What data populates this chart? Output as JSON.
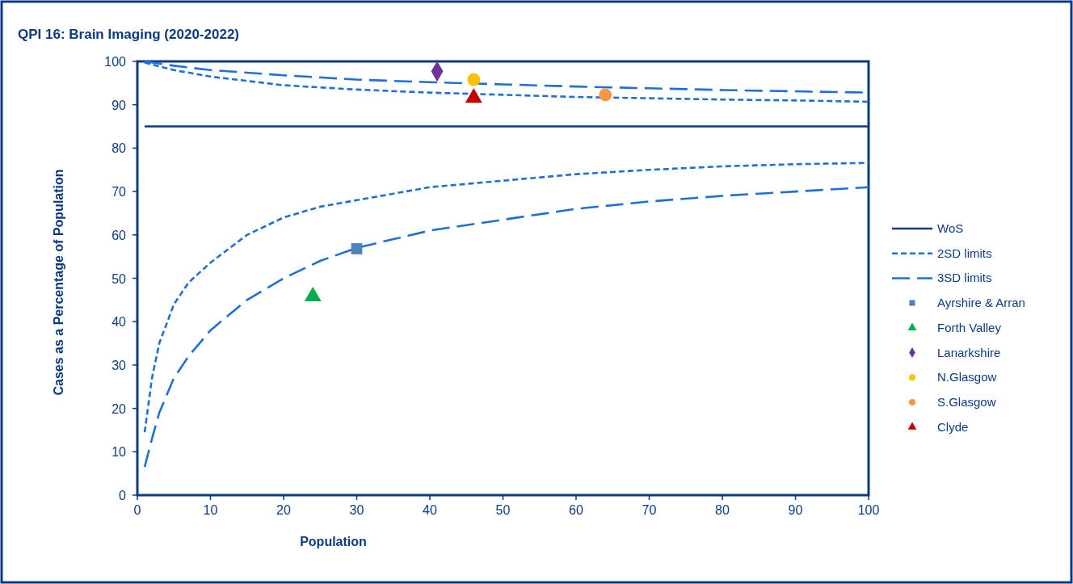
{
  "chart_data": {
    "type": "line",
    "title": "QPI 16: Brain Imaging (2020-2022)",
    "xlabel": "Population",
    "ylabel": "Cases as a Percentage of Population",
    "xlim": [
      0,
      100
    ],
    "xticks": [
      0,
      10,
      20,
      30,
      40,
      50,
      60,
      70,
      80,
      90,
      100
    ],
    "ylim": [
      0,
      100
    ],
    "yticks": [
      0,
      10,
      20,
      30,
      40,
      50,
      60,
      70,
      80,
      90,
      100
    ],
    "grid": false,
    "legend": "right",
    "series": [
      {
        "name": "WoS",
        "color": "#0b3a84",
        "line_style": "solid",
        "marker": "none",
        "x": [
          1,
          100
        ],
        "values": [
          85,
          85
        ]
      },
      {
        "name": "2SD limits",
        "color": "#1f6fd8",
        "line_style": "dotted",
        "marker": "none",
        "x": [
          1,
          2,
          3,
          5,
          7,
          10,
          15,
          20,
          25,
          30,
          40,
          50,
          60,
          70,
          80,
          90,
          100
        ],
        "values": [
          14.5,
          27,
          35,
          44,
          49,
          53.6,
          60,
          64,
          66.5,
          68,
          71,
          72.5,
          74,
          75,
          75.8,
          76.3,
          76.6
        ]
      },
      {
        "color": "#1f6fd8",
        "line_style": "dotted",
        "marker": "none",
        "x": [
          1,
          5,
          10,
          20,
          30,
          40,
          50,
          60,
          70,
          80,
          90,
          100
        ],
        "values": [
          99.7,
          98,
          96.5,
          94.5,
          93.5,
          92.8,
          92.3,
          91.8,
          91.5,
          91.2,
          91,
          90.7
        ]
      },
      {
        "name": "3SD limits",
        "color": "#1f6fd8",
        "line_style": "dashed",
        "marker": "none",
        "x": [
          1,
          2,
          3,
          5,
          7,
          10,
          15,
          20,
          25,
          30,
          40,
          50,
          60,
          70,
          80,
          90,
          100
        ],
        "values": [
          6.5,
          13,
          19,
          27,
          32,
          38,
          45,
          50,
          54,
          57,
          61,
          63.5,
          66,
          67.7,
          69,
          70,
          71
        ]
      },
      {
        "color": "#1f6fd8",
        "line_style": "dashed",
        "marker": "none",
        "x": [
          1,
          5,
          10,
          20,
          30,
          40,
          50,
          60,
          70,
          80,
          90,
          100
        ],
        "values": [
          100,
          99,
          98,
          96.8,
          95.8,
          95.2,
          94.7,
          94.2,
          93.8,
          93.4,
          93.1,
          92.8
        ]
      },
      {
        "name": "Ayrshire & Arran",
        "type": "scatter",
        "color": "#4f81bd",
        "marker": "square",
        "x": [
          30
        ],
        "values": [
          56.8
        ]
      },
      {
        "name": "Forth Valley",
        "type": "scatter",
        "color": "#00b050",
        "marker": "triangle",
        "x": [
          24
        ],
        "values": [
          45.8
        ]
      },
      {
        "name": "Lanarkshire",
        "type": "scatter",
        "color": "#7030a0",
        "marker": "diamond",
        "x": [
          41
        ],
        "values": [
          97.7
        ]
      },
      {
        "name": "N.Glasgow",
        "type": "scatter",
        "color": "#ffc000",
        "marker": "circle",
        "x": [
          46
        ],
        "values": [
          95.8
        ]
      },
      {
        "name": "S.Glasgow",
        "type": "scatter",
        "color": "#f79646",
        "marker": "circle",
        "x": [
          64
        ],
        "values": [
          92.3
        ]
      },
      {
        "name": "Clyde",
        "type": "scatter",
        "color": "#c00000",
        "marker": "triangle",
        "x": [
          46
        ],
        "values": [
          91.6
        ]
      }
    ]
  }
}
